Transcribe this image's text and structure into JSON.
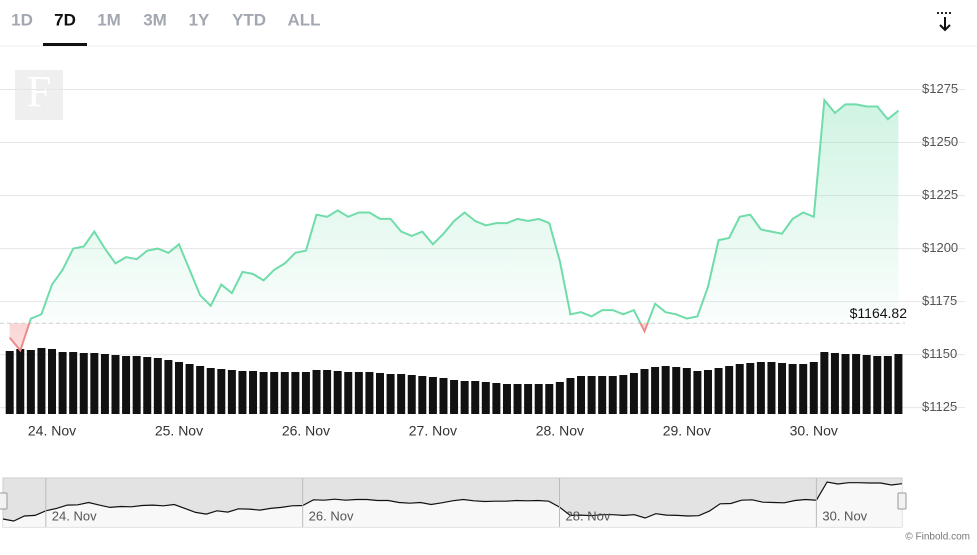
{
  "tabs": [
    "1D",
    "7D",
    "1M",
    "3M",
    "1Y",
    "YTD",
    "ALL"
  ],
  "active_tab": 1,
  "logo": "F",
  "credit": "© Finbold.com",
  "chart_data": {
    "type": "line",
    "categories": [
      null,
      null,
      null,
      null,
      "24. Nov",
      null,
      null,
      null,
      null,
      null,
      null,
      null,
      null,
      null,
      null,
      null,
      "25. Nov",
      null,
      null,
      null,
      null,
      null,
      null,
      null,
      null,
      null,
      null,
      null,
      "26. Nov",
      null,
      null,
      null,
      null,
      null,
      null,
      null,
      null,
      null,
      null,
      null,
      "27. Nov",
      null,
      null,
      null,
      null,
      null,
      null,
      null,
      null,
      null,
      null,
      null,
      "28. Nov",
      null,
      null,
      null,
      null,
      null,
      null,
      null,
      null,
      null,
      null,
      null,
      "29. Nov",
      null,
      null,
      null,
      null,
      null,
      null,
      null,
      null,
      null,
      null,
      null,
      "30. Nov",
      null,
      null,
      null,
      null,
      null,
      null,
      null,
      null
    ],
    "values": [
      1158,
      1152,
      1167,
      1169,
      1183,
      1190,
      1200,
      1201,
      1208,
      1200,
      1193,
      1196,
      1195,
      1199,
      1200,
      1198,
      1202,
      1190,
      1178,
      1173,
      1183,
      1179,
      1189,
      1188,
      1185,
      1190,
      1193,
      1198,
      1199,
      1216,
      1215,
      1218,
      1215,
      1217,
      1217,
      1214,
      1214,
      1208,
      1206,
      1208,
      1202,
      1207,
      1213,
      1217,
      1213,
      1211,
      1212,
      1212,
      1214,
      1213,
      1214,
      1212,
      1194,
      1169,
      1170,
      1168,
      1171,
      1171,
      1169,
      1171,
      1161,
      1174,
      1170,
      1169,
      1167,
      1168,
      1182,
      1204,
      1205,
      1215,
      1216,
      1209,
      1208,
      1207,
      1214,
      1217,
      1215,
      1270,
      1264,
      1268,
      1268,
      1267,
      1267,
      1261,
      1265
    ],
    "volume": [
      63,
      65,
      64,
      66,
      65,
      62,
      62,
      61,
      61,
      60,
      59,
      58,
      58,
      57,
      56,
      54,
      52,
      50,
      48,
      46,
      45,
      44,
      43,
      43,
      42,
      42,
      42,
      42,
      42,
      44,
      44,
      43,
      42,
      42,
      42,
      41,
      40,
      40,
      39,
      38,
      37,
      36,
      34,
      33,
      33,
      32,
      31,
      30,
      30,
      30,
      30,
      30,
      32,
      36,
      38,
      38,
      38,
      38,
      39,
      41,
      45,
      47,
      48,
      47,
      46,
      43,
      44,
      46,
      48,
      50,
      51,
      52,
      52,
      51,
      50,
      50,
      52,
      62,
      61,
      60,
      60,
      59,
      58,
      58,
      60
    ],
    "baseline": {
      "value": 1164.82,
      "label": "$1164.82"
    },
    "up_color": "#6fdcaa",
    "down_color": "#f08a8a",
    "volume_color": "#111111",
    "ylim": [
      1122,
      1296
    ],
    "yticks": [
      {
        "value": 1125,
        "label": "$1125"
      },
      {
        "value": 1150,
        "label": "$1150"
      },
      {
        "value": 1175,
        "label": "$1175"
      },
      {
        "value": 1200,
        "label": "$1200"
      },
      {
        "value": 1225,
        "label": "$1225"
      },
      {
        "value": 1250,
        "label": "$1250"
      },
      {
        "value": 1275,
        "label": "$1275"
      }
    ],
    "grid": true
  }
}
